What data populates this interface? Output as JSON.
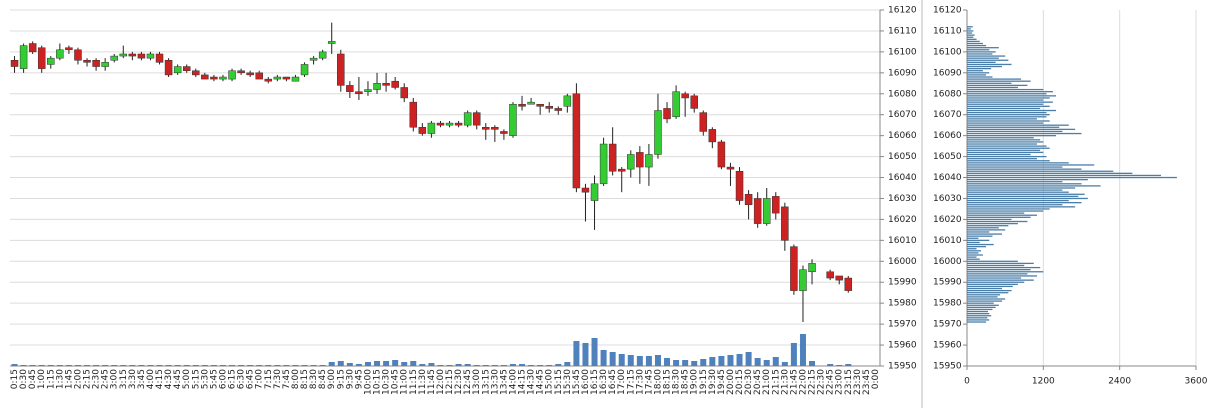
{
  "chart_data": [
    {
      "type": "candlestick",
      "categories": [
        "0:15",
        "0:30",
        "0:45",
        "1:00",
        "1:15",
        "1:30",
        "1:45",
        "2:00",
        "2:15",
        "2:30",
        "2:45",
        "3:00",
        "3:15",
        "3:30",
        "3:45",
        "4:00",
        "4:15",
        "4:30",
        "4:45",
        "5:00",
        "5:15",
        "5:30",
        "5:45",
        "6:00",
        "6:15",
        "6:30",
        "6:45",
        "7:00",
        "7:15",
        "7:30",
        "7:45",
        "8:00",
        "8:15",
        "8:30",
        "8:45",
        "9:00",
        "9:15",
        "9:30",
        "9:45",
        "10:00",
        "10:15",
        "10:30",
        "10:45",
        "11:00",
        "11:15",
        "11:30",
        "11:45",
        "12:00",
        "12:15",
        "12:30",
        "12:45",
        "13:00",
        "13:15",
        "13:30",
        "13:45",
        "14:00",
        "14:15",
        "14:30",
        "14:45",
        "15:00",
        "15:15",
        "15:30",
        "15:45",
        "16:00",
        "16:15",
        "16:30",
        "16:45",
        "17:00",
        "17:15",
        "17:30",
        "17:45",
        "18:00",
        "18:15",
        "18:30",
        "18:45",
        "19:00",
        "19:15",
        "19:30",
        "19:45",
        "20:00",
        "20:15",
        "20:30",
        "20:45",
        "21:00",
        "21:15",
        "21:30",
        "21:45",
        "22:00",
        "22:15",
        "22:30",
        "22:45",
        "23:00",
        "23:15",
        "23:30",
        "23:45",
        "0:00"
      ],
      "open": [
        16096,
        16092,
        16104,
        16102,
        16094,
        16097,
        16102,
        16101,
        16096,
        16096,
        16093,
        16096,
        16098,
        16099,
        16099,
        16097,
        16099,
        16096,
        16090,
        16093,
        16091,
        16089,
        16088,
        16087,
        16087,
        16091,
        16090,
        16090,
        16087,
        16087,
        16088,
        16086,
        16089,
        16096,
        16097,
        16104,
        16099,
        16084,
        16081,
        16081,
        16082,
        16085,
        16086,
        16083,
        16076,
        16064,
        16061,
        16066,
        16065,
        16066,
        16065,
        16071,
        16064,
        16064,
        16062,
        16060,
        16075,
        16075,
        16075,
        16074,
        16073,
        16074,
        16080,
        16035,
        16029,
        16037,
        16056,
        16044,
        16044,
        16052,
        16045,
        16051,
        16073,
        16069,
        16080,
        16079,
        16071,
        16063,
        16057,
        16045,
        16043,
        16032,
        16030,
        16018,
        16031,
        16026,
        16007,
        15986,
        15995,
        null,
        15995,
        15993,
        15992,
        null,
        null,
        null
      ],
      "high": [
        16098,
        16104,
        16105,
        16103,
        16098,
        16104,
        16103,
        16102,
        16097,
        16097,
        16097,
        16099,
        16103,
        16100,
        16100,
        16100,
        16100,
        16097,
        16094,
        16094,
        16092,
        16090,
        16089,
        16089,
        16092,
        16092,
        16091,
        16091,
        16088,
        16089,
        16088,
        16089,
        16095,
        16098,
        16101,
        16114,
        16101,
        16086,
        16088,
        16086,
        16090,
        16090,
        16088,
        16085,
        16078,
        16066,
        16067,
        16067,
        16067,
        16067,
        16072,
        16072,
        16066,
        16065,
        16063,
        16076,
        16079,
        16078,
        16075,
        16076,
        16074,
        16080,
        16085,
        16037,
        16041,
        16059,
        16064,
        16045,
        16053,
        16055,
        16056,
        16080,
        16076,
        16084,
        16081,
        16080,
        16072,
        16064,
        16058,
        16047,
        16045,
        16034,
        16033,
        16035,
        16033,
        16028,
        16008,
        15998,
        16001,
        null,
        15996,
        15993,
        15993,
        null,
        null,
        null
      ],
      "low": [
        16090,
        16090,
        16099,
        16090,
        16092,
        16096,
        16099,
        16094,
        16093,
        16091,
        16091,
        16095,
        16097,
        16096,
        16096,
        16096,
        16094,
        16088,
        16089,
        16090,
        16088,
        16087,
        16086,
        16086,
        16086,
        16089,
        16088,
        16087,
        16085,
        16086,
        16086,
        16086,
        16088,
        16094,
        16096,
        16099,
        16081,
        16078,
        16077,
        16079,
        16080,
        16081,
        16082,
        16076,
        16062,
        16060,
        16059,
        16064,
        16064,
        16064,
        16064,
        16063,
        16058,
        16057,
        16058,
        16059,
        16072,
        16075,
        16070,
        16071,
        16070,
        16071,
        16033,
        16019,
        16015,
        16036,
        16041,
        16033,
        16040,
        16037,
        16036,
        16049,
        16066,
        16068,
        16069,
        16071,
        16060,
        16054,
        16044,
        16036,
        16027,
        16020,
        16016,
        16017,
        16020,
        16005,
        15984,
        15971,
        15989,
        null,
        15991,
        15989,
        15985,
        null,
        null,
        null
      ],
      "close": [
        16093,
        16103,
        16100,
        16092,
        16097,
        16101,
        16101,
        16096,
        16095,
        16093,
        16095,
        16098,
        16099,
        16098,
        16097,
        16099,
        16095,
        16089,
        16093,
        16091,
        16089,
        16087,
        16087,
        16088,
        16091,
        16090,
        16089,
        16087,
        16086,
        16088,
        16087,
        16088,
        16094,
        16097,
        16100,
        16105,
        16084,
        16081,
        16080,
        16082,
        16085,
        16084,
        16083,
        16078,
        16064,
        16061,
        16066,
        16065,
        16066,
        16065,
        16071,
        16065,
        16063,
        16063,
        16061,
        16075,
        16074,
        16076,
        16074,
        16073,
        16072,
        16079,
        16035,
        16033,
        16037,
        16056,
        16043,
        16043,
        16051,
        16045,
        16051,
        16072,
        16068,
        16081,
        16078,
        16073,
        16062,
        16057,
        16045,
        16044,
        16029,
        16027,
        16018,
        16030,
        16023,
        16010,
        15986,
        15996,
        15999,
        null,
        15992,
        15991,
        15986,
        null,
        null,
        null
      ],
      "volume": [
        2,
        1,
        1,
        1,
        1,
        1,
        1,
        1,
        1,
        1,
        1,
        1,
        1,
        1,
        1,
        1,
        1,
        1,
        1,
        1,
        1,
        1,
        1,
        1,
        1,
        1,
        1,
        1,
        1,
        1,
        1,
        1,
        1,
        1,
        1,
        4,
        5,
        3,
        2,
        4,
        5,
        5,
        6,
        4,
        5,
        2,
        3,
        1,
        1,
        2,
        2,
        1,
        1,
        1,
        1,
        2,
        2,
        1,
        1,
        1,
        2,
        4,
        25,
        23,
        28,
        16,
        14,
        12,
        11,
        10,
        10,
        11,
        8,
        6,
        6,
        5,
        7,
        9,
        10,
        11,
        12,
        14,
        8,
        6,
        9,
        4,
        23,
        32,
        5,
        null,
        2,
        1,
        2,
        null,
        null,
        null
      ],
      "up_color": "#33cc33",
      "down_color": "#cc2222",
      "volume_color": "#4f81bd",
      "ylim": [
        15950,
        16120
      ],
      "yticks": [
        15950,
        15960,
        15970,
        15980,
        15990,
        16000,
        16010,
        16020,
        16030,
        16040,
        16050,
        16060,
        16070,
        16080,
        16090,
        16100,
        16110,
        16120
      ],
      "grid": true
    },
    {
      "type": "barh",
      "prices": [
        15971,
        15972,
        15973,
        15974,
        15975,
        15976,
        15977,
        15978,
        15979,
        15980,
        15981,
        15982,
        15983,
        15984,
        15985,
        15986,
        15987,
        15988,
        15989,
        15990,
        15991,
        15992,
        15993,
        15994,
        15995,
        15996,
        15997,
        15998,
        15999,
        16000,
        16001,
        16002,
        16003,
        16004,
        16005,
        16006,
        16007,
        16008,
        16009,
        16010,
        16011,
        16012,
        16013,
        16014,
        16015,
        16016,
        16017,
        16018,
        16019,
        16020,
        16021,
        16022,
        16023,
        16024,
        16025,
        16026,
        16027,
        16028,
        16029,
        16030,
        16031,
        16032,
        16033,
        16034,
        16035,
        16036,
        16037,
        16038,
        16039,
        16040,
        16041,
        16042,
        16043,
        16044,
        16045,
        16046,
        16047,
        16048,
        16049,
        16050,
        16051,
        16052,
        16053,
        16054,
        16055,
        16056,
        16057,
        16058,
        16059,
        16060,
        16061,
        16062,
        16063,
        16064,
        16065,
        16066,
        16067,
        16068,
        16069,
        16070,
        16071,
        16072,
        16073,
        16074,
        16075,
        16076,
        16077,
        16078,
        16079,
        16080,
        16081,
        16082,
        16083,
        16084,
        16085,
        16086,
        16087,
        16088,
        16089,
        16090,
        16091,
        16092,
        16093,
        16094,
        16095,
        16096,
        16097,
        16098,
        16099,
        16100,
        16101,
        16102,
        16103,
        16104,
        16105,
        16106,
        16107,
        16108,
        16109,
        16110,
        16111,
        16112
      ],
      "values": [
        300,
        350,
        320,
        380,
        350,
        330,
        400,
        450,
        500,
        420,
        550,
        600,
        480,
        520,
        650,
        700,
        550,
        720,
        800,
        900,
        1050,
        850,
        1100,
        950,
        1200,
        1000,
        1150,
        900,
        1050,
        800,
        200,
        150,
        250,
        180,
        220,
        150,
        300,
        420,
        200,
        350,
        180,
        400,
        550,
        350,
        600,
        500,
        650,
        800,
        950,
        700,
        1000,
        1100,
        900,
        1200,
        1300,
        1700,
        1500,
        1800,
        1600,
        1900,
        1750,
        1850,
        1600,
        1500,
        1700,
        2100,
        1800,
        1500,
        1900,
        3300,
        3050,
        2600,
        2300,
        1800,
        1500,
        2000,
        1600,
        1300,
        1100,
        1250,
        1000,
        1200,
        1150,
        1300,
        1250,
        1100,
        1200,
        1150,
        1050,
        1400,
        1800,
        1500,
        1700,
        1450,
        1600,
        1200,
        1300,
        1100,
        1250,
        1300,
        1250,
        1400,
        1150,
        1300,
        1200,
        1350,
        1200,
        1300,
        1400,
        1250,
        1350,
        1200,
        800,
        950,
        700,
        1000,
        850,
        400,
        300,
        350,
        250,
        380,
        550,
        700,
        450,
        650,
        500,
        600,
        400,
        450,
        350,
        500,
        300,
        250,
        200,
        150,
        100,
        120,
        80,
        100,
        60,
        90
      ],
      "color": "#4a7ea8",
      "xlim": [
        0,
        3600
      ],
      "xticks": [
        0,
        1200,
        2400,
        3600
      ],
      "ylim": [
        15950,
        16120
      ],
      "yticks": [
        15950,
        15960,
        15970,
        15980,
        15990,
        16000,
        16010,
        16020,
        16030,
        16040,
        16050,
        16060,
        16070,
        16080,
        16090,
        16100,
        16110,
        16120
      ],
      "grid": true
    }
  ]
}
